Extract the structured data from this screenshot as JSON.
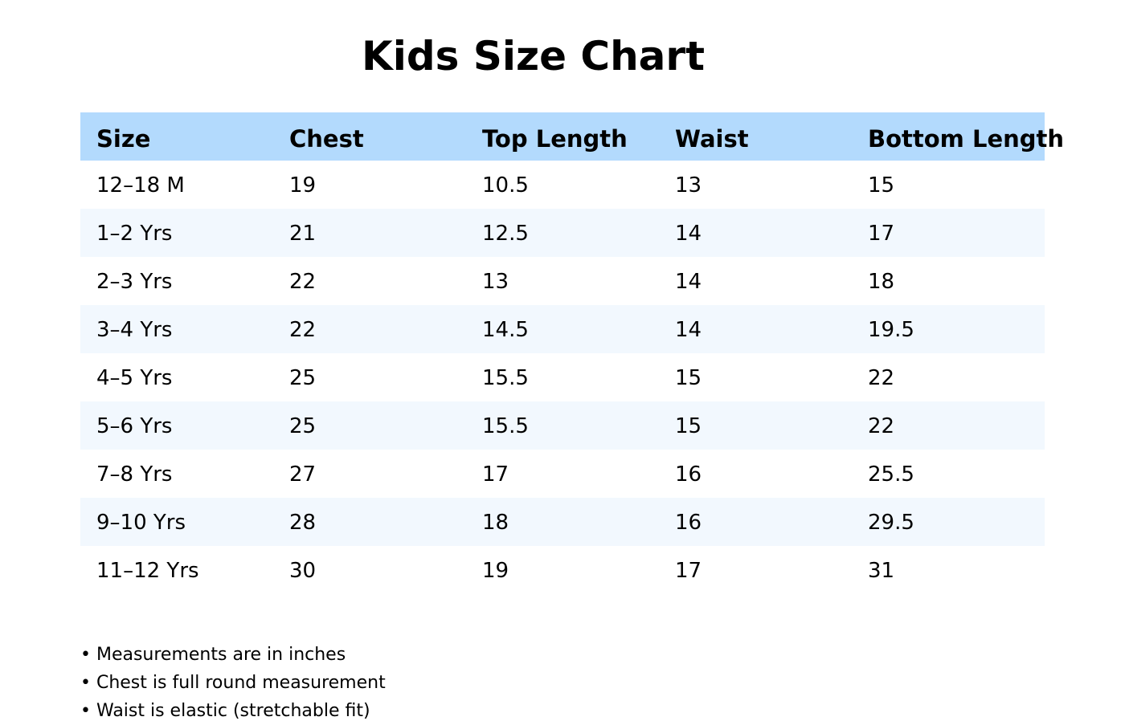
{
  "title": "Kids Size Chart",
  "table": {
    "headers": [
      "Size",
      "Chest",
      "Top Length",
      "Waist",
      "Bottom Length"
    ],
    "rows": [
      [
        "12–18 M",
        "19",
        "10.5",
        "13",
        "15"
      ],
      [
        "1–2 Yrs",
        "21",
        "12.5",
        "14",
        "17"
      ],
      [
        "2–3 Yrs",
        "22",
        "13",
        "14",
        "18"
      ],
      [
        "3–4 Yrs",
        "22",
        "14.5",
        "14",
        "19.5"
      ],
      [
        "4–5 Yrs",
        "25",
        "15.5",
        "15",
        "22"
      ],
      [
        "5–6 Yrs",
        "25",
        "15.5",
        "15",
        "22"
      ],
      [
        "7–8 Yrs",
        "27",
        "17",
        "16",
        "25.5"
      ],
      [
        "9–10 Yrs",
        "28",
        "18",
        "16",
        "29.5"
      ],
      [
        "11–12 Yrs",
        "30",
        "19",
        "17",
        "31"
      ]
    ]
  },
  "notes": [
    "• Measurements are in inches",
    "• Chest is full round measurement",
    "• Waist is elastic (stretchable fit)"
  ],
  "colors": {
    "header_background": "#b3dafd",
    "alternate_row_background": "#f2f8fe",
    "text": "#000000"
  }
}
